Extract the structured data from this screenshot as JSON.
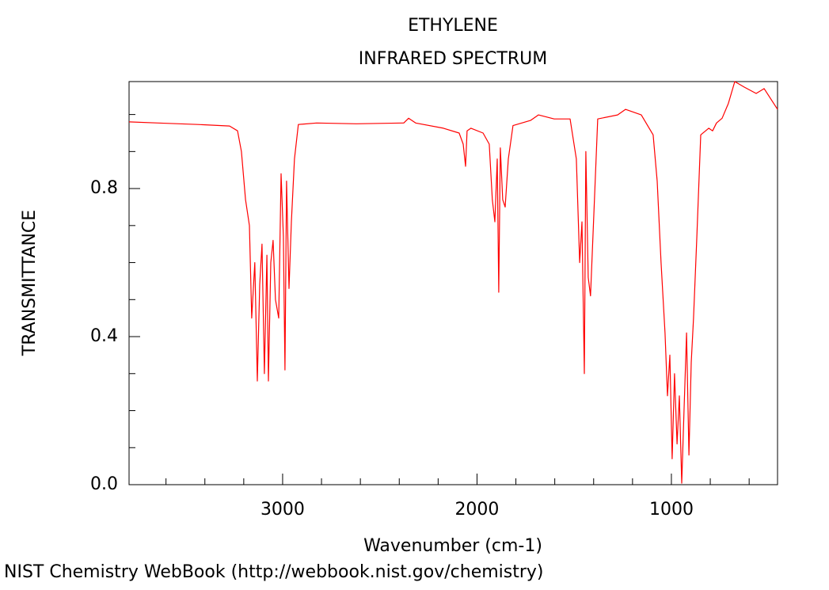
{
  "chart_data": {
    "type": "line",
    "title": "ETHYLENE",
    "subtitle": "INFRARED SPECTRUM",
    "xlabel": "Wavenumber (cm-1)",
    "ylabel": "TRANSMITTANCE",
    "footer": "NIST Chemistry WebBook (http://webbook.nist.gov/chemistry)",
    "color": "#ff0000",
    "xlim": [
      3790,
      454
    ],
    "ylim": [
      0,
      1.089
    ],
    "xticks": [
      3000,
      2000,
      1000
    ],
    "xminorticks": [
      3600,
      3400,
      3200,
      2800,
      2600,
      2400,
      2200,
      1800,
      1600,
      1400,
      1200,
      800,
      600
    ],
    "yticks": [
      {
        "value": 0,
        "label": "0.0"
      },
      0.4,
      0.8
    ],
    "yminorticks": [
      0.1,
      0.2,
      0.3,
      0.5,
      0.6,
      0.7,
      0.9,
      1.0
    ],
    "x": [
      3790,
      3640,
      3436,
      3273,
      3232,
      3212,
      3191,
      3171,
      3159,
      3143,
      3130,
      3118,
      3106,
      3094,
      3081,
      3073,
      3061,
      3049,
      3037,
      3020,
      3008,
      2996,
      2988,
      2980,
      2967,
      2955,
      2939,
      2919,
      2825,
      2621,
      2377,
      2352,
      2316,
      2173,
      2092,
      2071,
      2059,
      2051,
      2031,
      1969,
      1937,
      1921,
      1908,
      1896,
      1888,
      1880,
      1868,
      1855,
      1839,
      1815,
      1725,
      1684,
      1603,
      1521,
      1489,
      1472,
      1460,
      1448,
      1440,
      1428,
      1416,
      1399,
      1379,
      1277,
      1236,
      1155,
      1094,
      1073,
      1053,
      1033,
      1020,
      1008,
      996,
      984,
      971,
      959,
      947,
      935,
      922,
      910,
      898,
      886,
      869,
      849,
      808,
      788,
      768,
      739,
      707,
      674,
      625,
      564,
      523,
      454
    ],
    "y": [
      0.98,
      0.977,
      0.973,
      0.969,
      0.956,
      0.9,
      0.77,
      0.7,
      0.45,
      0.6,
      0.28,
      0.54,
      0.65,
      0.3,
      0.62,
      0.28,
      0.6,
      0.66,
      0.5,
      0.45,
      0.84,
      0.67,
      0.31,
      0.82,
      0.53,
      0.71,
      0.88,
      0.973,
      0.977,
      0.975,
      0.977,
      0.99,
      0.977,
      0.963,
      0.95,
      0.92,
      0.86,
      0.956,
      0.963,
      0.95,
      0.92,
      0.77,
      0.71,
      0.88,
      0.52,
      0.91,
      0.77,
      0.75,
      0.88,
      0.97,
      0.984,
      0.999,
      0.988,
      0.988,
      0.88,
      0.6,
      0.71,
      0.3,
      0.9,
      0.56,
      0.51,
      0.73,
      0.988,
      0.999,
      1.014,
      0.999,
      0.945,
      0.82,
      0.6,
      0.41,
      0.24,
      0.35,
      0.07,
      0.3,
      0.11,
      0.24,
      0.004,
      0.2,
      0.41,
      0.08,
      0.33,
      0.45,
      0.67,
      0.945,
      0.963,
      0.956,
      0.977,
      0.99,
      1.03,
      1.089,
      1.074,
      1.057,
      1.07,
      1.014
    ]
  }
}
